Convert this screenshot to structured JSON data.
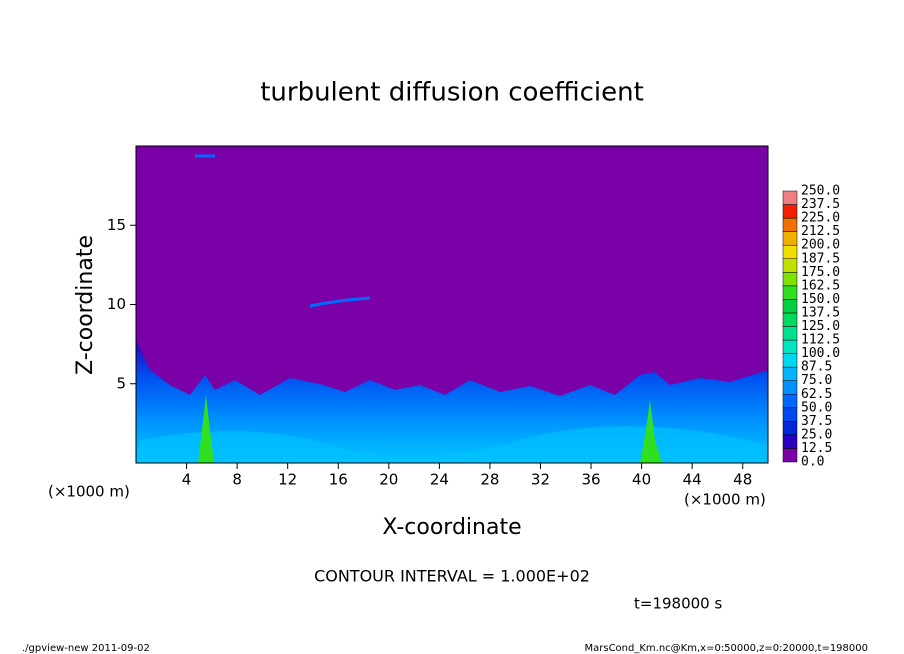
{
  "chart_data": {
    "type": "contour",
    "title": "turbulent diffusion coefficient",
    "x_label": "X-coordinate",
    "y_label": "Z-coordinate",
    "x_unit": "(×1000 m)",
    "y_unit": "(×1000 m)",
    "xlim": [
      0,
      50
    ],
    "ylim": [
      0,
      20
    ],
    "xticks": [
      4,
      8,
      12,
      16,
      20,
      24,
      28,
      32,
      36,
      40,
      44,
      48
    ],
    "yticks": [
      5,
      10,
      15
    ],
    "colorbar": {
      "levels": [
        {
          "value": 0,
          "label": "0.0"
        },
        12.5,
        {
          "value": 25,
          "label": "25.0"
        },
        37.5,
        {
          "value": 50,
          "label": "50.0"
        },
        62.5,
        {
          "value": 75,
          "label": "75.0"
        },
        87.5,
        {
          "value": 100,
          "label": "100.0"
        },
        112.5,
        {
          "value": 125,
          "label": "125.0"
        },
        137.5,
        {
          "value": 150,
          "label": "150.0"
        },
        162.5,
        {
          "value": 175,
          "label": "175.0"
        },
        187.5,
        {
          "value": 200,
          "label": "200.0"
        },
        212.5,
        {
          "value": 225,
          "label": "225.0"
        },
        237.5,
        {
          "value": 250,
          "label": "250.0"
        }
      ],
      "colors": [
        "#7a00a8",
        "#2a00c0",
        "#0028d8",
        "#0048f0",
        "#0068ff",
        "#0090ff",
        "#00b4ff",
        "#00d8f0",
        "#00e4c0",
        "#00e090",
        "#00d860",
        "#00d040",
        "#30e020",
        "#80e000",
        "#c0e000",
        "#f0e000",
        "#f0b000",
        "#f07000",
        "#f02000",
        "#f08080"
      ]
    },
    "contour_interval": "CONTOUR INTERVAL = 1.000E+02",
    "time": "t=198000 s",
    "footer_left": "./gpview-new  2011-09-02",
    "footer_right": "MarsCond_Km.nc@Km,x=0:50000,z=0:20000,t=198000"
  }
}
